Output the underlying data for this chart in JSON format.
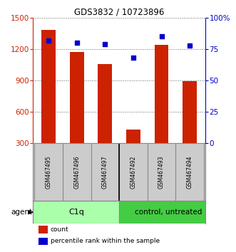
{
  "title": "GDS3832 / 10723896",
  "samples": [
    "GSM467495",
    "GSM467496",
    "GSM467497",
    "GSM467492",
    "GSM467493",
    "GSM467494"
  ],
  "counts": [
    1380,
    1175,
    1060,
    430,
    1240,
    895
  ],
  "percentiles": [
    82,
    80,
    79,
    68,
    85,
    78
  ],
  "bar_color": "#cc2200",
  "dot_color": "#0000cc",
  "left_axis_color": "#cc2200",
  "right_axis_color": "#0000cc",
  "ylim_left": [
    300,
    1500
  ],
  "ylim_right": [
    0,
    100
  ],
  "left_ticks": [
    300,
    600,
    900,
    1200,
    1500
  ],
  "right_ticks": [
    0,
    25,
    50,
    75,
    100
  ],
  "right_tick_labels": [
    "0",
    "25",
    "50",
    "75",
    "100%"
  ],
  "background_color": "#ffffff",
  "plot_bg": "#ffffff",
  "sample_box_color": "#cccccc",
  "group_c1q_color": "#aaffaa",
  "group_ctrl_color": "#44cc44",
  "group_labels": [
    "C1q",
    "control, untreated"
  ]
}
